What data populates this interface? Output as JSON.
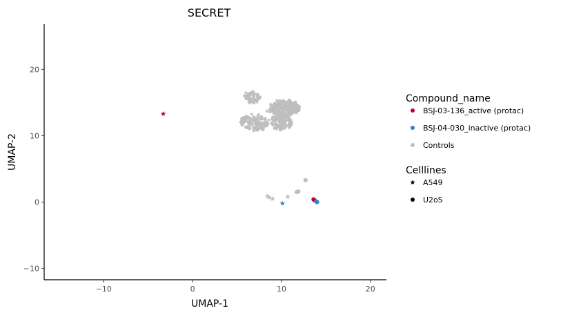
{
  "chart_data": {
    "type": "scatter",
    "title": "SECRET",
    "xlabel": "UMAP-1",
    "ylabel": "UMAP-2",
    "xlim": [
      -16.7,
      21.8
    ],
    "ylim": [
      -11.7,
      26.8
    ],
    "xticks": [
      -10,
      0,
      10,
      20
    ],
    "yticks": [
      -10,
      0,
      10,
      20
    ],
    "grid": false,
    "legend_position": "right",
    "legends": [
      {
        "title": "Compound_name",
        "entries": [
          {
            "label": "BSJ-03-136_active (protac)",
            "color": "#C0002E"
          },
          {
            "label": "BSJ-04-030_inactive (protac)",
            "color": "#2E86C1"
          },
          {
            "label": "Controls",
            "color": "#BEBEBE"
          }
        ]
      },
      {
        "title": "Celllines",
        "entries": [
          {
            "label": "A549",
            "shape": "star"
          },
          {
            "label": "U2oS",
            "shape": "circle"
          }
        ]
      }
    ],
    "series": [
      {
        "name": "Controls",
        "color": "#BEBEBE",
        "clusters": [
          {
            "cx": 10.5,
            "cy": 14.2,
            "rx": 1.6,
            "ry": 1.2,
            "n": 160,
            "shape": "mixed"
          },
          {
            "cx": 10.0,
            "cy": 12.2,
            "rx": 1.2,
            "ry": 1.3,
            "n": 120,
            "shape": "mixed"
          },
          {
            "cx": 7.0,
            "cy": 12.0,
            "rx": 1.5,
            "ry": 1.2,
            "n": 110,
            "shape": "mixed"
          },
          {
            "cx": 6.8,
            "cy": 15.8,
            "rx": 0.8,
            "ry": 0.9,
            "n": 45,
            "shape": "mixed"
          },
          {
            "cx": 9.0,
            "cy": 14.0,
            "rx": 0.7,
            "ry": 0.7,
            "n": 30,
            "shape": "mixed"
          }
        ],
        "points": [
          {
            "x": 12.7,
            "y": 3.3,
            "shape": "circle"
          },
          {
            "x": 11.9,
            "y": 1.6,
            "shape": "circle"
          },
          {
            "x": 11.7,
            "y": 1.5,
            "shape": "circle"
          },
          {
            "x": 10.7,
            "y": 0.8,
            "shape": "star"
          },
          {
            "x": 8.4,
            "y": 0.9,
            "shape": "star"
          },
          {
            "x": 8.6,
            "y": 0.7,
            "shape": "star"
          },
          {
            "x": 9.0,
            "y": 0.5,
            "shape": "star"
          }
        ]
      },
      {
        "name": "BSJ-03-136_active (protac)",
        "color": "#C0002E",
        "points": [
          {
            "x": -3.3,
            "y": 13.3,
            "shape": "star"
          },
          {
            "x": 13.6,
            "y": 0.4,
            "shape": "circle"
          },
          {
            "x": 13.7,
            "y": 0.3,
            "shape": "circle"
          }
        ]
      },
      {
        "name": "BSJ-04-030_inactive (protac)",
        "color": "#2E86C1",
        "points": [
          {
            "x": 10.1,
            "y": -0.2,
            "shape": "star"
          },
          {
            "x": 13.9,
            "y": 0.1,
            "shape": "circle"
          },
          {
            "x": 14.0,
            "y": 0.0,
            "shape": "circle"
          }
        ]
      }
    ]
  }
}
